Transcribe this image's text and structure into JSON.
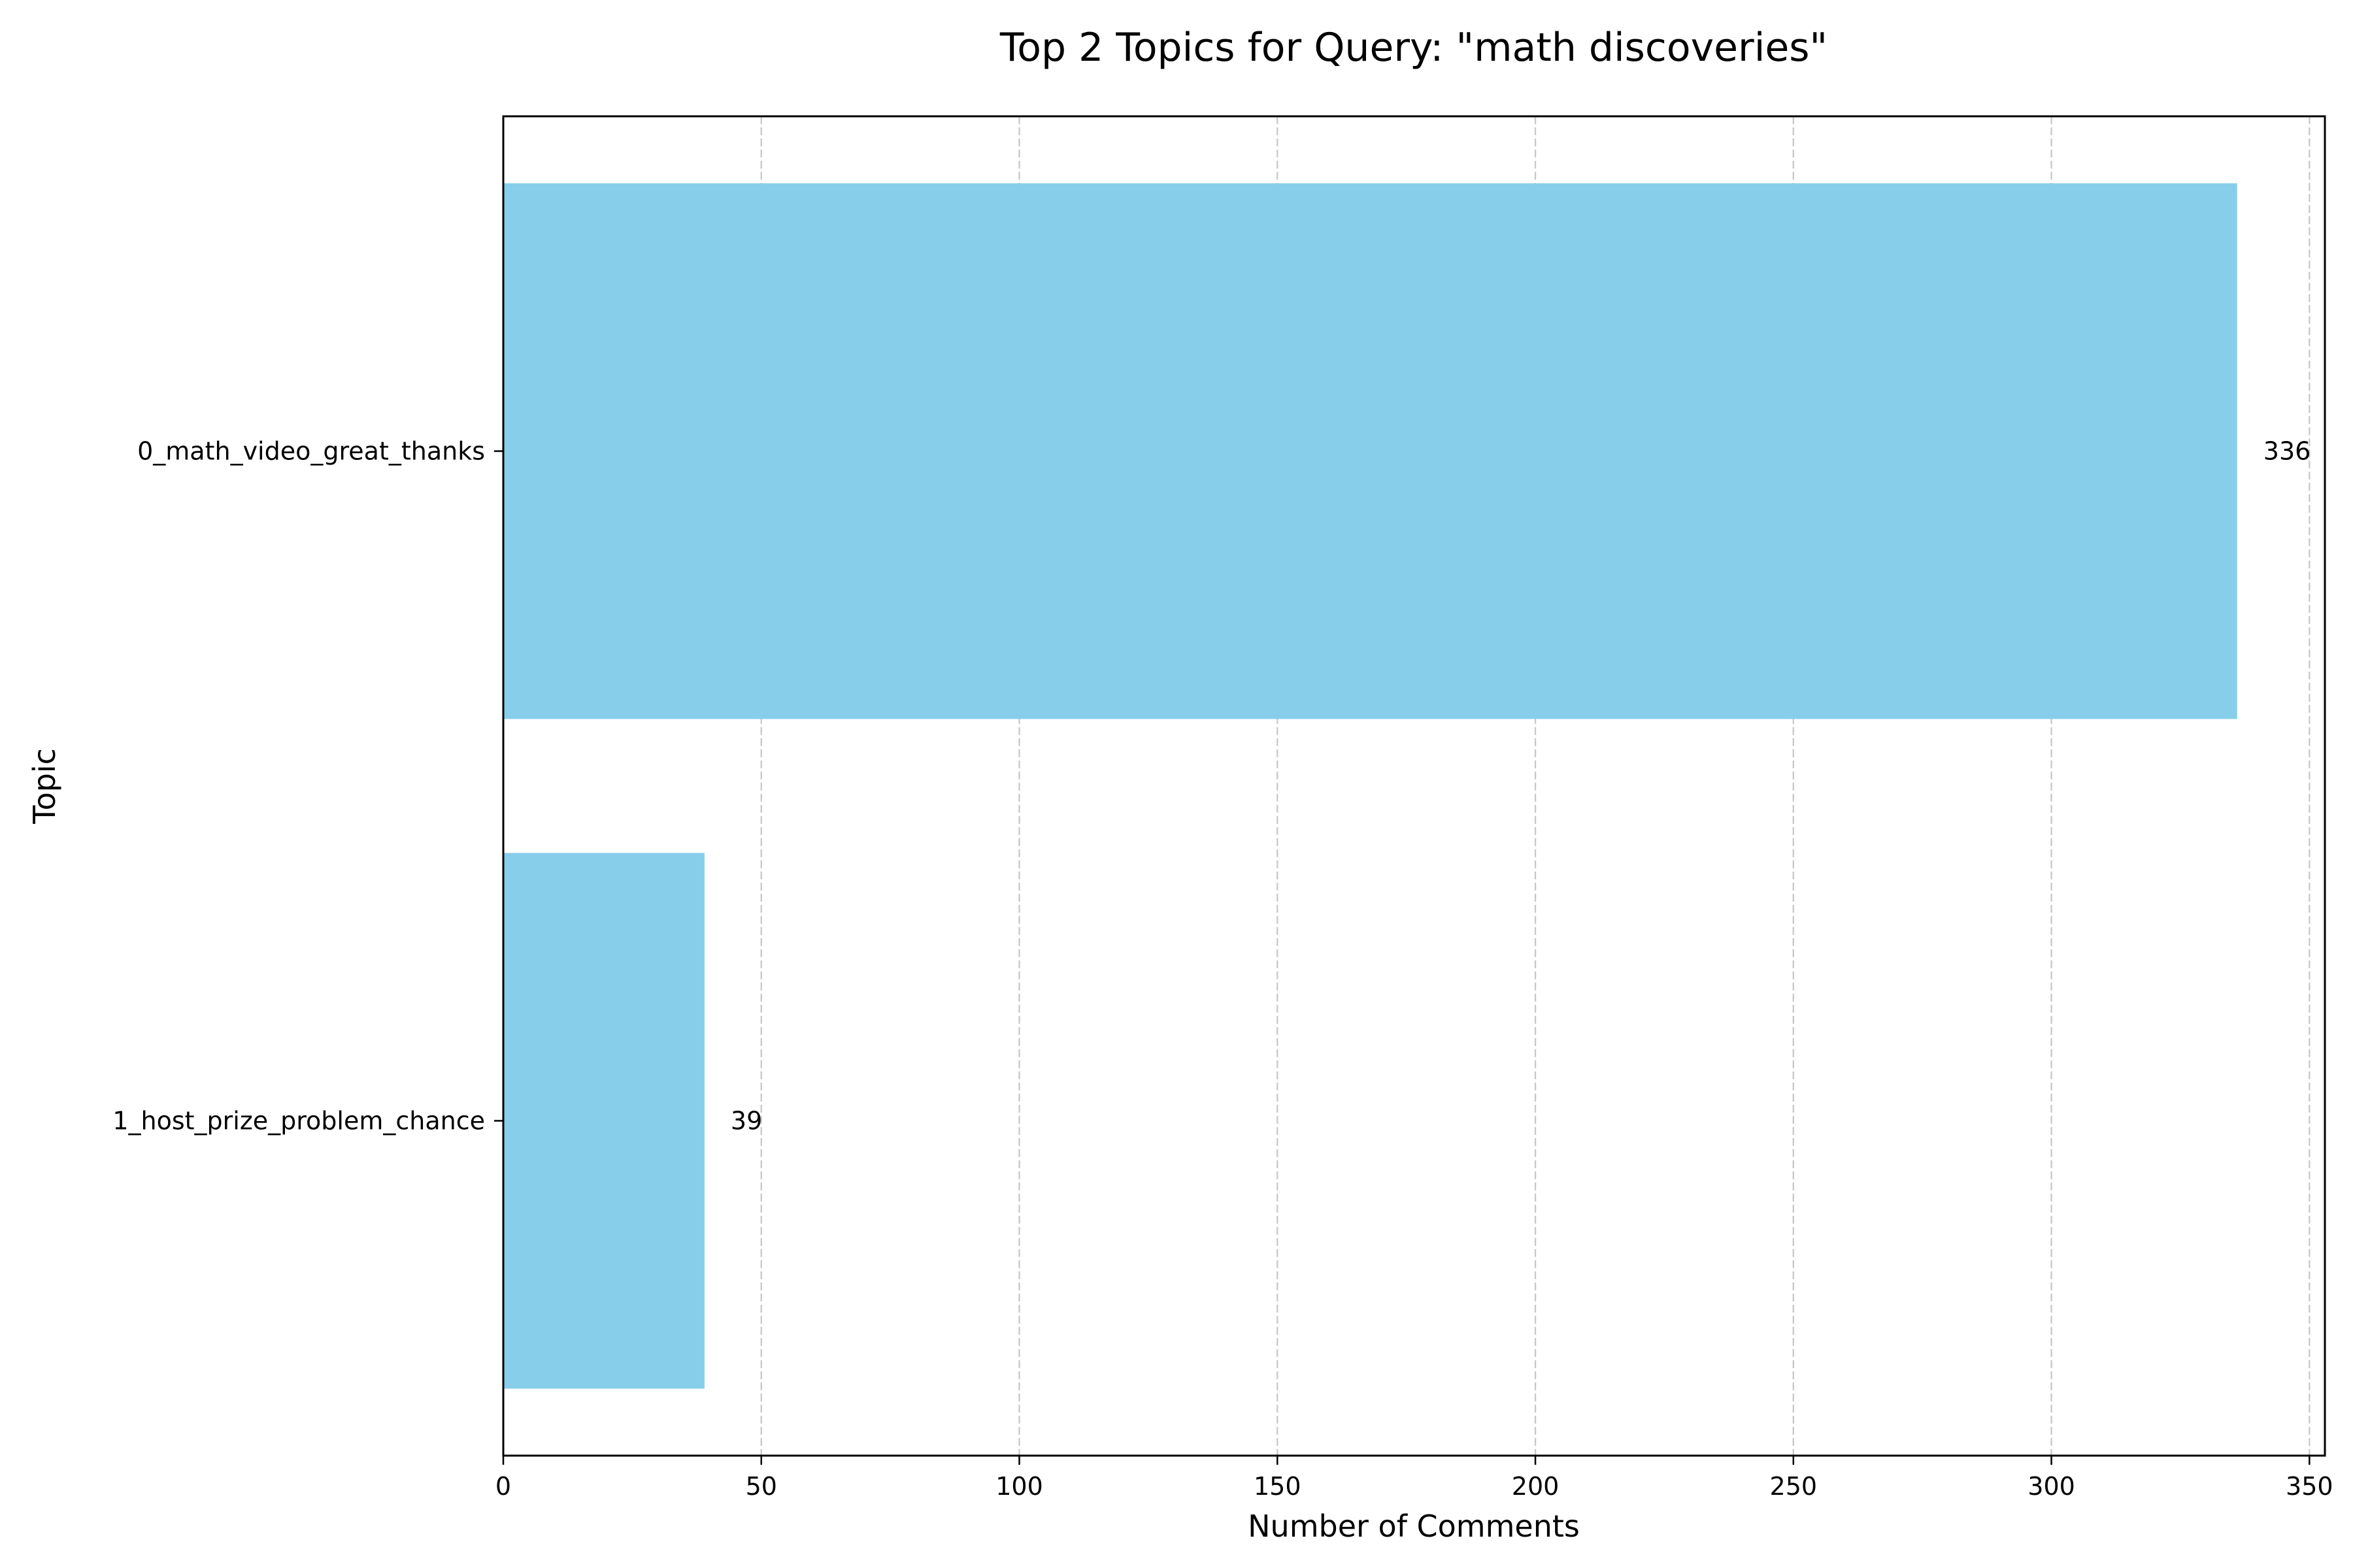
{
  "chart_data": {
    "type": "bar",
    "orientation": "horizontal",
    "title": "Top 2 Topics for Query: \"math discoveries\"",
    "xlabel": "Number of Comments",
    "ylabel": "Topic",
    "categories": [
      "0_math_video_great_thanks",
      "1_host_prize_problem_chance"
    ],
    "values": [
      336,
      39
    ],
    "data_labels": [
      "336",
      "39"
    ],
    "xlim": [
      0,
      353
    ],
    "xticks": [
      0,
      50,
      100,
      150,
      200,
      250,
      300,
      350
    ],
    "x_grid": true,
    "grid_style": "dashed",
    "bar_color": "#87ceeb"
  }
}
